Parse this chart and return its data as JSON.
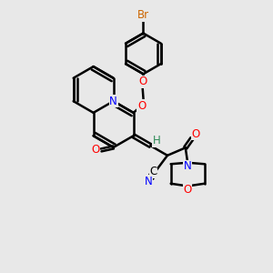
{
  "bg_color": "#e8e8e8",
  "bond_color": "#000000",
  "bond_width": 1.8,
  "atom_colors": {
    "N": "#0000ff",
    "O": "#ff0000",
    "Br": "#cc6600",
    "H": "#2e8b57"
  },
  "font_size": 8.5,
  "figsize": [
    3.0,
    3.0
  ],
  "dpi": 100
}
